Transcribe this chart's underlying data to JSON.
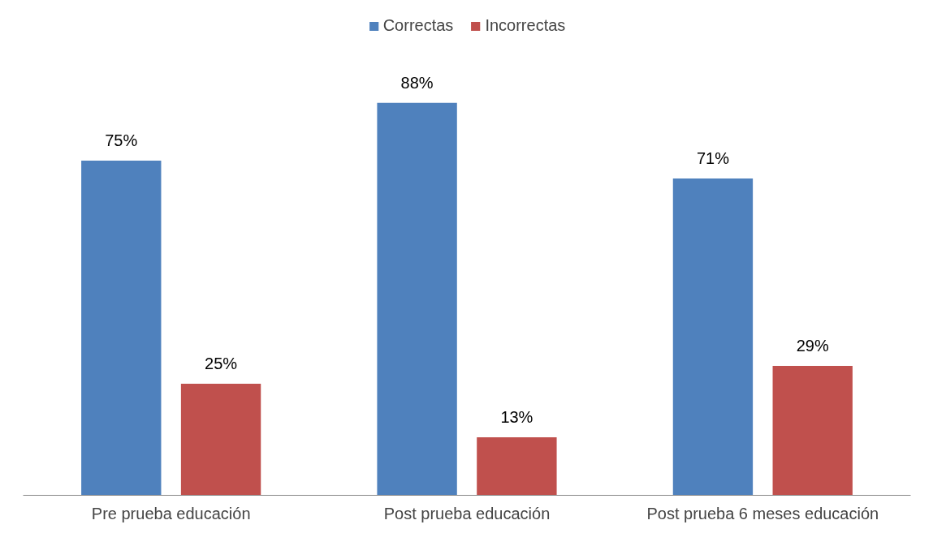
{
  "chart_data": {
    "type": "bar",
    "categories": [
      "Pre prueba educación",
      "Post prueba educación",
      "Post prueba 6 meses educación"
    ],
    "series": [
      {
        "name": "Correctas",
        "color": "#4f81bd",
        "values": [
          75,
          88,
          71
        ],
        "value_labels": [
          "75%",
          "88%",
          "71%"
        ]
      },
      {
        "name": "Incorrectas",
        "color": "#c0504d",
        "values": [
          25,
          13,
          29
        ],
        "value_labels": [
          "25%",
          "13%",
          "29%"
        ]
      }
    ],
    "legend": "top",
    "grid": false
  }
}
